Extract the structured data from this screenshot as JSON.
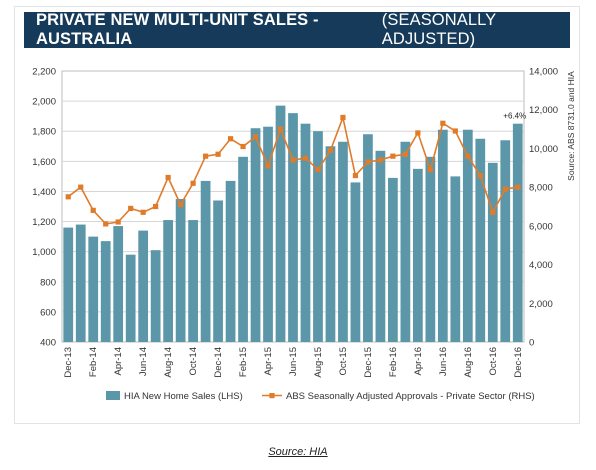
{
  "header": {
    "title_main": "PRIVATE NEW MULTI-UNIT SALES - AUSTRALIA",
    "title_sub": "(SEASONALLY ADJUSTED)"
  },
  "caption": "Source: HIA",
  "chart_data": {
    "type": "bar",
    "categories": [
      "Dec-13",
      "Jan-14",
      "Feb-14",
      "Mar-14",
      "Apr-14",
      "May-14",
      "Jun-14",
      "Jul-14",
      "Aug-14",
      "Sep-14",
      "Oct-14",
      "Nov-14",
      "Dec-14",
      "Jan-15",
      "Feb-15",
      "Mar-15",
      "Apr-15",
      "May-15",
      "Jun-15",
      "Jul-15",
      "Aug-15",
      "Sep-15",
      "Oct-15",
      "Nov-15",
      "Dec-15",
      "Jan-16",
      "Feb-16",
      "Mar-16",
      "Apr-16",
      "May-16",
      "Jun-16",
      "Jul-16",
      "Aug-16",
      "Sep-16",
      "Oct-16",
      "Nov-16",
      "Dec-16"
    ],
    "tick_labels": [
      "Dec-13",
      "Feb-14",
      "Apr-14",
      "Jun-14",
      "Aug-14",
      "Oct-14",
      "Dec-14",
      "Feb-15",
      "Apr-15",
      "Jun-15",
      "Aug-15",
      "Oct-15",
      "Dec-15",
      "Feb-16",
      "Apr-16",
      "Jun-16",
      "Aug-16",
      "Oct-16",
      "Dec-16"
    ],
    "series": [
      {
        "name": "HIA New Home Sales (LHS)",
        "type": "bar",
        "axis": "left",
        "color": "#5b97a8",
        "values": [
          1160,
          1180,
          1100,
          1070,
          1170,
          980,
          1140,
          1010,
          1210,
          1350,
          1210,
          1470,
          1340,
          1470,
          1630,
          1820,
          1830,
          1970,
          1920,
          1850,
          1800,
          1700,
          1730,
          1460,
          1780,
          1670,
          1490,
          1730,
          1550,
          1630,
          1810,
          1500,
          1810,
          1750,
          1590,
          1740,
          1850
        ]
      },
      {
        "name": "ABS Seasonally Adjusted Approvals - Private Sector (RHS)",
        "type": "line",
        "axis": "right",
        "color": "#e07b2a",
        "values": [
          7500,
          8000,
          6800,
          6100,
          6200,
          6900,
          6700,
          7000,
          8500,
          7100,
          8200,
          9600,
          9700,
          10500,
          10100,
          10600,
          9100,
          11000,
          9400,
          9500,
          8900,
          9900,
          11600,
          8600,
          9300,
          9400,
          9600,
          9700,
          10800,
          8900,
          11300,
          10900,
          9600,
          8600,
          6700,
          7900,
          8000
        ]
      }
    ],
    "left_axis": {
      "min": 400,
      "max": 2200,
      "ticks": [
        "400",
        "600",
        "800",
        "1,000",
        "1,200",
        "1,400",
        "1,600",
        "1,800",
        "2,000",
        "2,200"
      ]
    },
    "right_axis": {
      "min": 0,
      "max": 14000,
      "ticks": [
        "0",
        "2,000",
        "4,000",
        "6,000",
        "8,000",
        "10,000",
        "12,000",
        "14,000"
      ]
    },
    "right_axis_label": "Source: ABS 8731.0 and HIA",
    "annotation": "+6.4%",
    "legend_position": "bottom"
  }
}
